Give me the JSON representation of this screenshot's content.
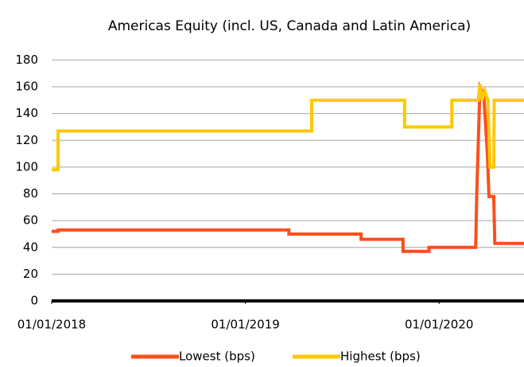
{
  "chart_data": {
    "type": "line",
    "title": "Americas Equity (incl. US, Canada and Latin America)",
    "xlim": [
      "2018-01-01",
      "2020-06-09"
    ],
    "xticks": [
      {
        "value": "2018-01-01",
        "label": "01/01/2018"
      },
      {
        "value": "2019-01-01",
        "label": "01/01/2019"
      },
      {
        "value": "2020-01-01",
        "label": "01/01/2020"
      }
    ],
    "ylim": [
      0,
      180
    ],
    "yticks": [
      0,
      20,
      40,
      60,
      80,
      100,
      120,
      140,
      160,
      180
    ],
    "grid": true,
    "legend": "bottom",
    "series": [
      {
        "name": "Lowest (bps)",
        "color": "#fc4f1c",
        "x": [
          "2018-01-01",
          "2018-01-13",
          "2018-01-13",
          "2019-03-24",
          "2019-03-24",
          "2019-08-07",
          "2019-08-07",
          "2019-10-25",
          "2019-10-25",
          "2019-12-13",
          "2019-12-13",
          "2020-03-10",
          "2020-03-12",
          "2020-03-18",
          "2020-03-25",
          "2020-04-01",
          "2020-04-04",
          "2020-04-13",
          "2020-04-15",
          "2020-06-09"
        ],
        "values": [
          52,
          52,
          53,
          53,
          50,
          50,
          46,
          46,
          37,
          37,
          40,
          40,
          80,
          160,
          155,
          110,
          78,
          78,
          43,
          43
        ]
      },
      {
        "name": "Highest (bps)",
        "color": "#ffc800",
        "x": [
          "2018-01-01",
          "2018-01-13",
          "2018-01-13",
          "2019-05-06",
          "2019-05-06",
          "2019-10-28",
          "2019-10-28",
          "2020-01-25",
          "2020-01-25",
          "2020-03-15",
          "2020-03-18",
          "2020-03-22",
          "2020-03-27",
          "2020-04-02",
          "2020-04-06",
          "2020-04-13",
          "2020-04-14",
          "2020-06-09"
        ],
        "values": [
          98,
          98,
          127,
          127,
          150,
          150,
          130,
          130,
          150,
          150,
          162,
          150,
          157,
          150,
          100,
          100,
          150,
          150
        ]
      }
    ]
  }
}
